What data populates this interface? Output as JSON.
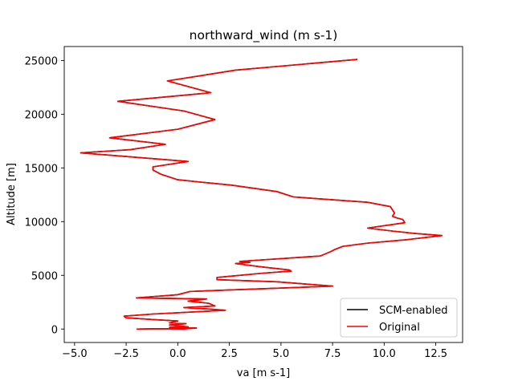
{
  "chart_data": {
    "type": "line",
    "title": "northward_wind (m s-1)",
    "xlabel": "va [m s-1]",
    "ylabel": "Altitude [m]",
    "xlim": [
      -5.5,
      13.8
    ],
    "ylim": [
      -1250,
      26300
    ],
    "xticks": [
      -5.0,
      -2.5,
      0.0,
      2.5,
      5.0,
      7.5,
      10.0,
      12.5
    ],
    "xtick_labels": [
      "−5.0",
      "−2.5",
      "0.0",
      "2.5",
      "5.0",
      "7.5",
      "10.0",
      "12.5"
    ],
    "yticks": [
      0,
      5000,
      10000,
      15000,
      20000,
      25000
    ],
    "ytick_labels": [
      "0",
      "5000",
      "10000",
      "15000",
      "20000",
      "25000"
    ],
    "grid": false,
    "legend_position": "lower-right",
    "series": [
      {
        "name": "SCM-enabled",
        "color": "#000000",
        "points": [
          [
            -2.0,
            0
          ],
          [
            -1.0,
            30
          ],
          [
            0.3,
            10
          ],
          [
            0.9,
            100
          ],
          [
            -0.4,
            160
          ],
          [
            0.5,
            200
          ],
          [
            -0.4,
            380
          ],
          [
            0.4,
            500
          ],
          [
            -0.4,
            580
          ],
          [
            0.0,
            750
          ],
          [
            -1.1,
            870
          ],
          [
            -2.5,
            1050
          ],
          [
            -2.6,
            1200
          ],
          [
            -1.2,
            1400
          ],
          [
            2.3,
            1750
          ],
          [
            1.6,
            1850
          ],
          [
            0.3,
            2000
          ],
          [
            1.8,
            2150
          ],
          [
            1.5,
            2400
          ],
          [
            0.5,
            2600
          ],
          [
            1.4,
            2800
          ],
          [
            -2.0,
            2900
          ],
          [
            -1.0,
            3050
          ],
          [
            0.0,
            3200
          ],
          [
            0.2,
            3300
          ],
          [
            0.6,
            3500
          ],
          [
            7.5,
            4000
          ],
          [
            4.8,
            4400
          ],
          [
            1.9,
            4600
          ],
          [
            1.9,
            4800
          ],
          [
            4.1,
            5200
          ],
          [
            5.5,
            5400
          ],
          [
            5.4,
            5500
          ],
          [
            4.0,
            5800
          ],
          [
            3.2,
            6000
          ],
          [
            2.8,
            6100
          ],
          [
            3.5,
            6200
          ],
          [
            3.0,
            6300
          ],
          [
            6.9,
            6800
          ],
          [
            7.4,
            7200
          ],
          [
            7.6,
            7400
          ],
          [
            8.0,
            7700
          ],
          [
            9.2,
            8000
          ],
          [
            11.0,
            8300
          ],
          [
            12.8,
            8700
          ],
          [
            11.5,
            8900
          ],
          [
            10.5,
            9100
          ],
          [
            9.2,
            9400
          ],
          [
            11.0,
            9900
          ],
          [
            10.9,
            10200
          ],
          [
            10.6,
            10350
          ],
          [
            10.4,
            10500
          ],
          [
            10.5,
            10800
          ],
          [
            10.3,
            11400
          ],
          [
            9.2,
            11800
          ],
          [
            5.6,
            12300
          ],
          [
            4.8,
            12800
          ],
          [
            2.6,
            13400
          ],
          [
            1.0,
            13700
          ],
          [
            0.0,
            13900
          ],
          [
            -0.8,
            14400
          ],
          [
            -1.2,
            14800
          ],
          [
            -1.2,
            15100
          ],
          [
            0.5,
            15600
          ],
          [
            -4.7,
            16400
          ],
          [
            -2.3,
            16700
          ],
          [
            -0.6,
            17200
          ],
          [
            -3.3,
            17800
          ],
          [
            0.0,
            18600
          ],
          [
            1.8,
            19500
          ],
          [
            0.3,
            20300
          ],
          [
            -2.9,
            21200
          ],
          [
            1.6,
            22000
          ],
          [
            -0.5,
            23100
          ],
          [
            2.8,
            24100
          ],
          [
            8.7,
            25100
          ]
        ]
      },
      {
        "name": "Original",
        "color": "#ff0000",
        "points": [
          [
            -2.0,
            0
          ],
          [
            -1.0,
            30
          ],
          [
            0.3,
            10
          ],
          [
            0.9,
            100
          ],
          [
            -0.4,
            160
          ],
          [
            0.5,
            200
          ],
          [
            -0.4,
            380
          ],
          [
            0.4,
            500
          ],
          [
            -0.4,
            580
          ],
          [
            0.0,
            750
          ],
          [
            -1.1,
            870
          ],
          [
            -2.5,
            1050
          ],
          [
            -2.6,
            1200
          ],
          [
            -1.2,
            1400
          ],
          [
            2.3,
            1750
          ],
          [
            1.6,
            1850
          ],
          [
            0.3,
            2000
          ],
          [
            1.8,
            2150
          ],
          [
            1.5,
            2400
          ],
          [
            0.5,
            2600
          ],
          [
            1.4,
            2800
          ],
          [
            -2.0,
            2900
          ],
          [
            -1.0,
            3050
          ],
          [
            0.0,
            3200
          ],
          [
            0.2,
            3300
          ],
          [
            0.6,
            3500
          ],
          [
            7.5,
            4000
          ],
          [
            4.8,
            4400
          ],
          [
            1.9,
            4600
          ],
          [
            1.9,
            4800
          ],
          [
            4.1,
            5200
          ],
          [
            5.5,
            5400
          ],
          [
            5.4,
            5500
          ],
          [
            4.0,
            5800
          ],
          [
            3.2,
            6000
          ],
          [
            2.8,
            6100
          ],
          [
            3.5,
            6200
          ],
          [
            3.0,
            6300
          ],
          [
            6.9,
            6800
          ],
          [
            7.4,
            7200
          ],
          [
            7.6,
            7400
          ],
          [
            8.0,
            7700
          ],
          [
            9.2,
            8000
          ],
          [
            11.0,
            8300
          ],
          [
            12.8,
            8700
          ],
          [
            11.5,
            8900
          ],
          [
            10.5,
            9100
          ],
          [
            9.2,
            9400
          ],
          [
            11.0,
            9900
          ],
          [
            10.9,
            10200
          ],
          [
            10.6,
            10350
          ],
          [
            10.4,
            10500
          ],
          [
            10.5,
            10800
          ],
          [
            10.3,
            11400
          ],
          [
            9.2,
            11800
          ],
          [
            5.6,
            12300
          ],
          [
            4.8,
            12800
          ],
          [
            2.6,
            13400
          ],
          [
            1.0,
            13700
          ],
          [
            0.0,
            13900
          ],
          [
            -0.8,
            14400
          ],
          [
            -1.2,
            14800
          ],
          [
            -1.2,
            15100
          ],
          [
            0.5,
            15600
          ],
          [
            -4.7,
            16400
          ],
          [
            -2.3,
            16700
          ],
          [
            -0.6,
            17200
          ],
          [
            -3.3,
            17800
          ],
          [
            0.0,
            18600
          ],
          [
            1.8,
            19500
          ],
          [
            0.3,
            20300
          ],
          [
            -2.9,
            21200
          ],
          [
            1.6,
            22000
          ],
          [
            -0.5,
            23100
          ],
          [
            2.8,
            24100
          ],
          [
            8.7,
            25100
          ]
        ]
      }
    ]
  }
}
